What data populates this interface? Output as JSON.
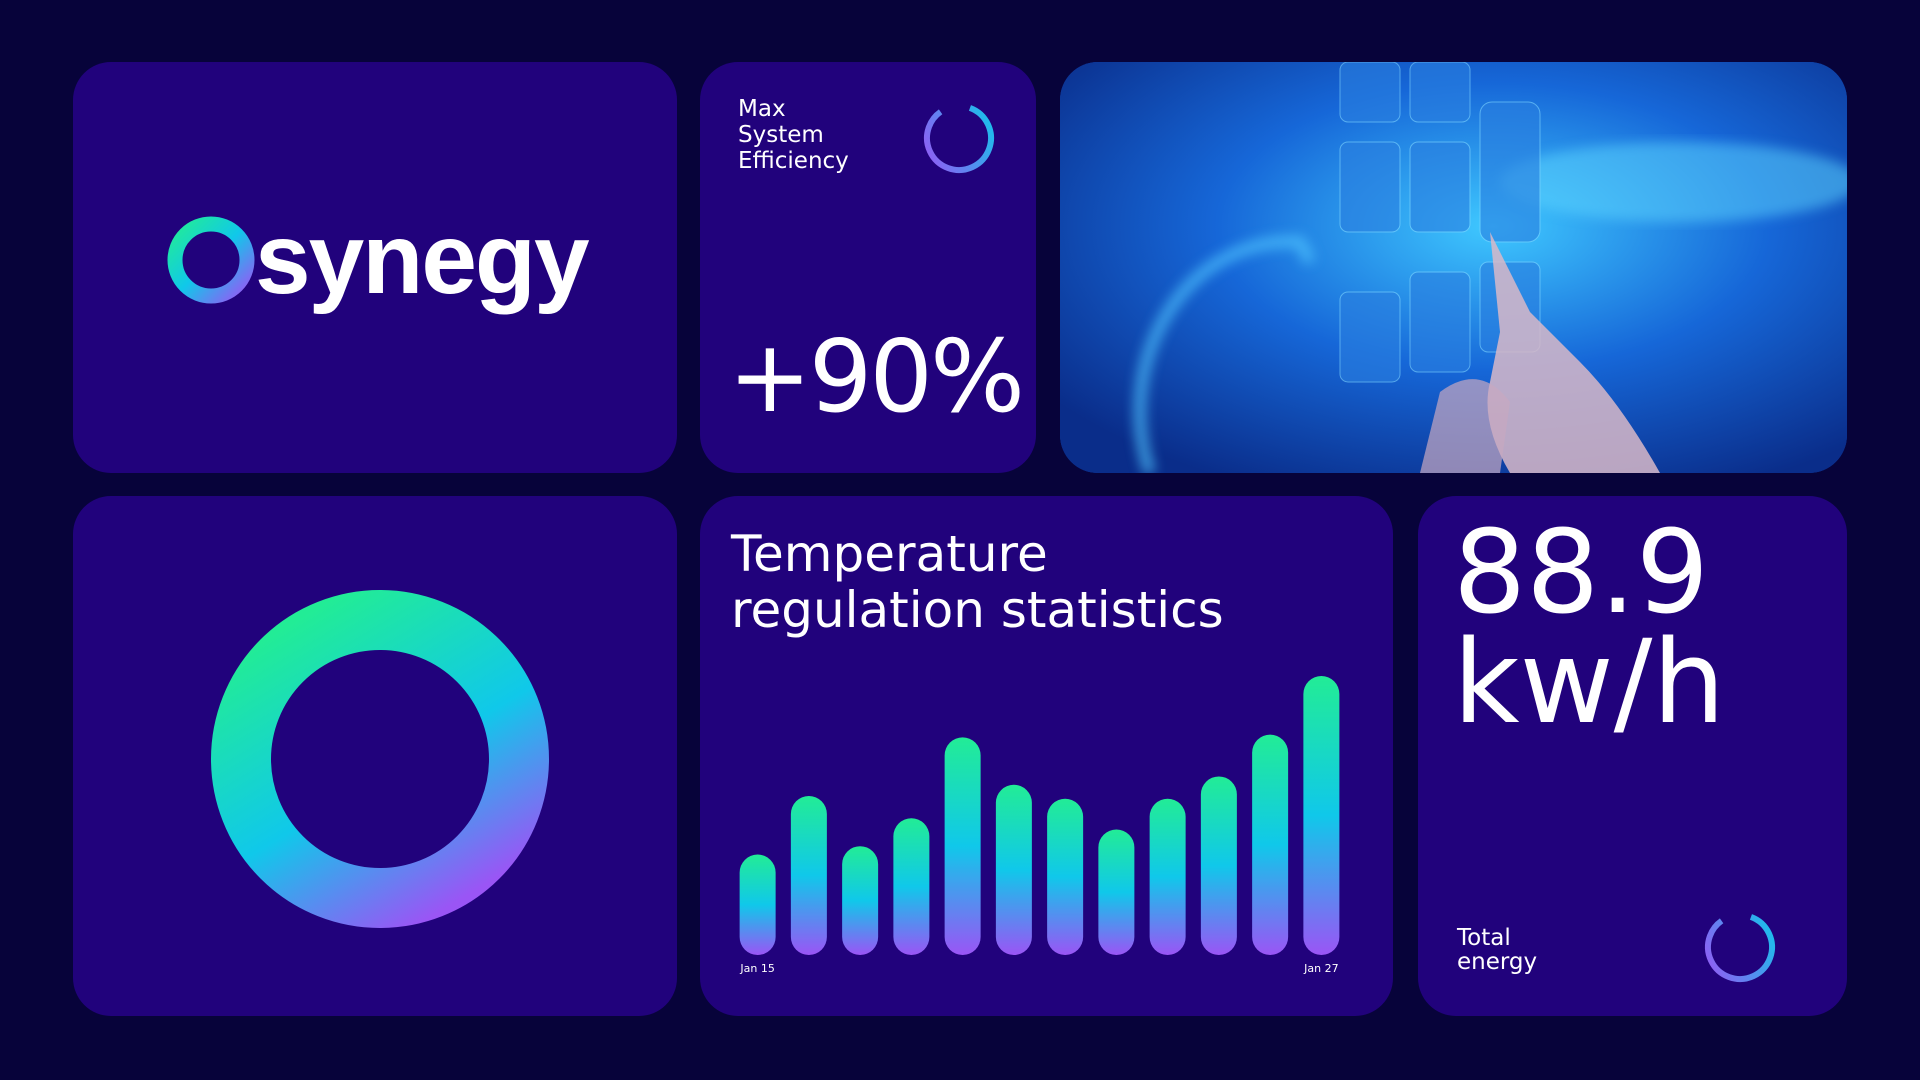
{
  "logo": {
    "name": "synegy"
  },
  "efficiency": {
    "label": "Max System Efficiency",
    "value": "+90%"
  },
  "temperature": {
    "title": "Temperature regulation statistics",
    "chart_data": {
      "type": "bar",
      "categories": [
        "Jan 15",
        null,
        null,
        null,
        null,
        null,
        null,
        null,
        null,
        null,
        null,
        "Jan 27"
      ],
      "values": [
        36,
        57,
        39,
        49,
        78,
        61,
        56,
        45,
        56,
        64,
        79,
        100
      ],
      "ylim": [
        0,
        100
      ],
      "gradient": [
        "#22ec96",
        "#10c8ea",
        "#9a55f5"
      ]
    }
  },
  "energy": {
    "value": "88.9",
    "unit": "kw/h",
    "label": "Total energy"
  }
}
